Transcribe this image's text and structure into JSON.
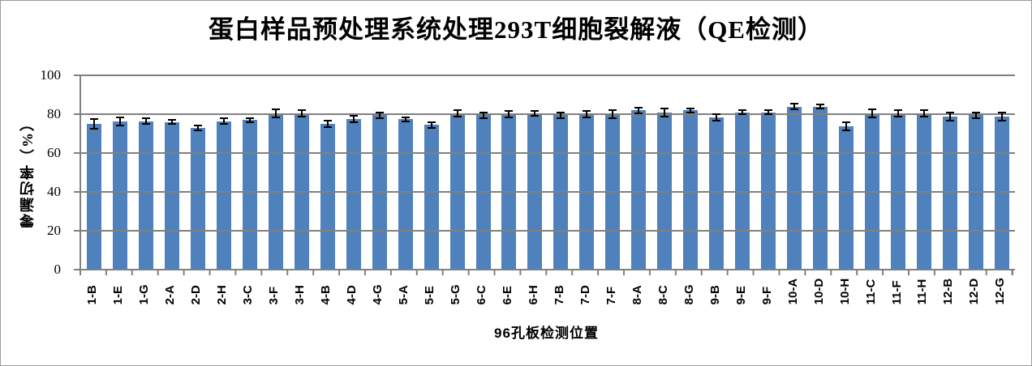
{
  "chart_data": {
    "type": "bar",
    "title": "蛋白样品预处理系统处理293T细胞裂解液（QE检测）",
    "xlabel": "96孔板检测位置",
    "ylabel": "零漏切率（%）",
    "ylim": [
      0,
      100
    ],
    "yticks": [
      0,
      20,
      40,
      60,
      80,
      100
    ],
    "grid": true,
    "legend": "none",
    "bar_color": "#4F81BD",
    "gridline_color": "#808080",
    "error_bar_color": "#000000",
    "categories": [
      "1-B",
      "1-E",
      "1-G",
      "2-A",
      "2-D",
      "2-H",
      "3-C",
      "3-F",
      "3-H",
      "4-B",
      "4-D",
      "4-G",
      "5-A",
      "5-E",
      "5-G",
      "6-C",
      "6-E",
      "6-H",
      "7-B",
      "7-D",
      "7-F",
      "8-A",
      "8-C",
      "8-G",
      "9-B",
      "9-E",
      "9-F",
      "10-A",
      "10-D",
      "10-H",
      "11-C",
      "11-F",
      "11-H",
      "12-B",
      "12-D",
      "12-G"
    ],
    "values": [
      74.5,
      76,
      76,
      75.5,
      72.5,
      76,
      76.5,
      80,
      80,
      74.5,
      77,
      79,
      77,
      74,
      80,
      79,
      79.5,
      80,
      79,
      79.5,
      79.5,
      81.5,
      80.5,
      81.5,
      78,
      80.5,
      80.5,
      83.5,
      83.5,
      73.5,
      80,
      80,
      80,
      78.5,
      79,
      78.5
    ],
    "errors": [
      3,
      2.5,
      2,
      1.5,
      1.5,
      2,
      1.5,
      2.5,
      2,
      2,
      2,
      2,
      1.5,
      2,
      2,
      2,
      2,
      1.5,
      2,
      2,
      2.5,
      2,
      2.5,
      1.5,
      2,
      1.5,
      1.5,
      2,
      1.5,
      2.5,
      2.5,
      2,
      2,
      2.5,
      2,
      2.5
    ]
  }
}
